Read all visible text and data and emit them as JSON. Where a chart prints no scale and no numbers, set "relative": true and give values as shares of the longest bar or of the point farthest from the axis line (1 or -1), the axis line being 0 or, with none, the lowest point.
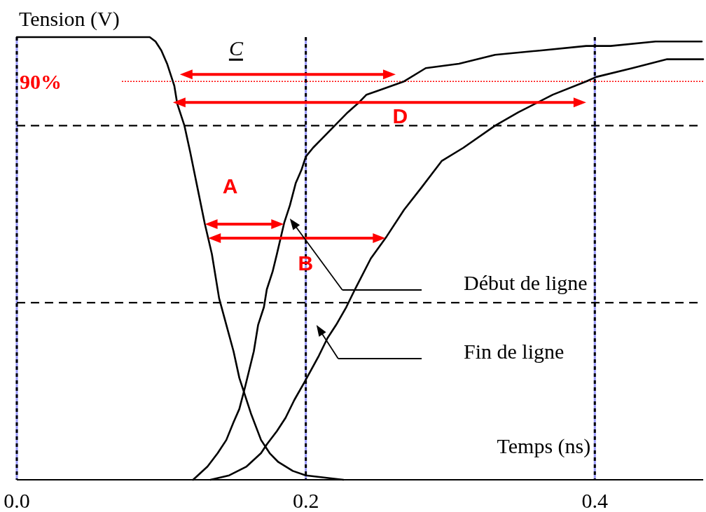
{
  "chart_data": {
    "type": "line",
    "relative": true,
    "xlabel": "Temps (ns)",
    "ylabel": "Tension (V)",
    "xlim": [
      0,
      0.475
    ],
    "xticks": [
      {
        "value": 0,
        "label": "0.0"
      },
      0.2,
      0.4
    ],
    "grid": "x",
    "legend": "right",
    "ref_lines": [
      {
        "axis": "y",
        "value": 0.9,
        "label": "90%",
        "color": "#ff0000",
        "line_style": "dotted"
      },
      {
        "axis": "y",
        "value": 0.8,
        "color": "#000000",
        "line_style": "dashed"
      },
      {
        "axis": "y",
        "value": 0.4,
        "color": "#000000",
        "line_style": "dashed"
      }
    ],
    "annotations": [
      "C",
      "D",
      "A",
      "B"
    ],
    "series": [
      {
        "color": "#000000",
        "x": [
          0,
          0.092,
          0.096,
          0.1,
          0.104,
          0.107,
          0.109,
          0.111,
          0.116,
          0.12,
          0.125,
          0.13,
          0.135,
          0.14,
          0.145,
          0.15,
          0.154,
          0.158,
          0.162,
          0.169,
          0.175,
          0.181,
          0.191,
          0.2,
          0.226
        ],
        "values": [
          1,
          1,
          0.99,
          0.97,
          0.94,
          0.91,
          0.89,
          0.85,
          0.8,
          0.74,
          0.66,
          0.58,
          0.51,
          0.41,
          0.35,
          0.29,
          0.23,
          0.19,
          0.15,
          0.09,
          0.06,
          0.04,
          0.02,
          0.01,
          0
        ]
      },
      {
        "name": "Début de ligne",
        "color": "#000000",
        "x": [
          0.122,
          0.132,
          0.139,
          0.145,
          0.15,
          0.154,
          0.158,
          0.161,
          0.164,
          0.167,
          0.171,
          0.173,
          0.177,
          0.18,
          0.185,
          0.189,
          0.193,
          0.197,
          0.2,
          0.205,
          0.211,
          0.22,
          0.229,
          0.236,
          0.242,
          0.251,
          0.268,
          0.283,
          0.306,
          0.331,
          0.363,
          0.394,
          0.411,
          0.442,
          0.474
        ],
        "values": [
          0,
          0.03,
          0.06,
          0.09,
          0.13,
          0.16,
          0.21,
          0.25,
          0.29,
          0.35,
          0.39,
          0.43,
          0.47,
          0.51,
          0.58,
          0.62,
          0.67,
          0.7,
          0.73,
          0.75,
          0.77,
          0.8,
          0.83,
          0.85,
          0.87,
          0.88,
          0.9,
          0.93,
          0.94,
          0.96,
          0.97,
          0.98,
          0.98,
          0.99,
          0.99
        ]
      },
      {
        "name": "Fin de ligne",
        "color": "#000000",
        "x": [
          0.134,
          0.147,
          0.159,
          0.169,
          0.173,
          0.18,
          0.186,
          0.192,
          0.199,
          0.209,
          0.215,
          0.221,
          0.228,
          0.234,
          0.245,
          0.256,
          0.268,
          0.28,
          0.294,
          0.309,
          0.331,
          0.347,
          0.371,
          0.394,
          0.401,
          0.426,
          0.45,
          0.475
        ],
        "values": [
          0,
          0.01,
          0.03,
          0.06,
          0.08,
          0.11,
          0.14,
          0.18,
          0.22,
          0.28,
          0.32,
          0.35,
          0.39,
          0.43,
          0.5,
          0.55,
          0.61,
          0.66,
          0.72,
          0.75,
          0.8,
          0.83,
          0.87,
          0.9,
          0.91,
          0.93,
          0.95,
          0.95
        ]
      }
    ]
  }
}
